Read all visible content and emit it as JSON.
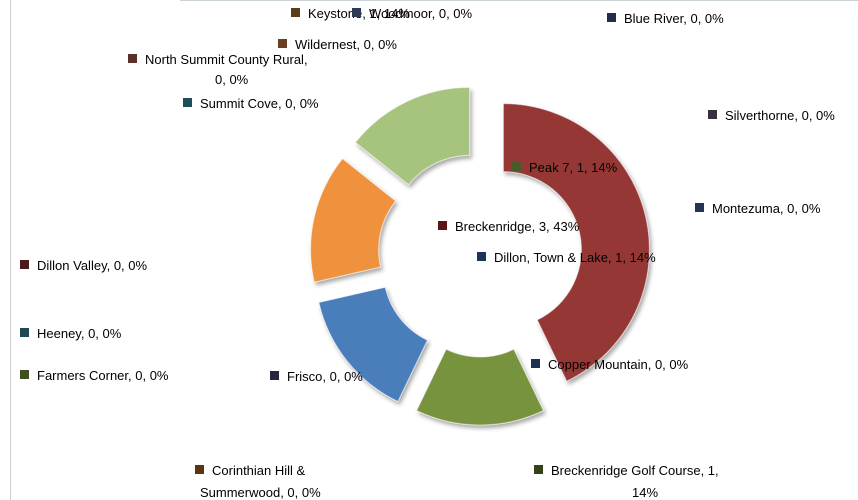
{
  "chart_data": {
    "type": "pie",
    "variant": "exploded-doughnut",
    "title": "",
    "legend": "none",
    "slices": [
      {
        "name": "Breckenridge",
        "count": 3,
        "percent": "43%",
        "color": "#953735"
      },
      {
        "name": "Breckenridge Golf Course",
        "count": 1,
        "percent": "14%",
        "color": "#77933c"
      },
      {
        "name": "Dillon, Town & Lake",
        "count": 1,
        "percent": "14%",
        "color": "#4a7ebb"
      },
      {
        "name": "Keystone",
        "count": 1,
        "percent": "14%",
        "color": "#f0913e"
      },
      {
        "name": "Peak 7",
        "count": 1,
        "percent": "14%",
        "color": "#a7c47e"
      }
    ],
    "labels": [
      {
        "key": "keystone",
        "text": "Keystone, 1, 14%",
        "color": "#5a3b1a"
      },
      {
        "key": "woodmoor",
        "text": "Woodmoor, 0, 0%",
        "color": "#2d3b55"
      },
      {
        "key": "blue-river",
        "text": "Blue River, 0, 0%",
        "color": "#1f2e4a"
      },
      {
        "key": "wildernest",
        "text": "Wildernest, 0, 0%",
        "color": "#6b3e26"
      },
      {
        "key": "north-summit-1",
        "text": "North Summit County Rural,",
        "color": "#5b2f2a"
      },
      {
        "key": "north-summit-2",
        "text": "0, 0%",
        "color": null
      },
      {
        "key": "summit-cove",
        "text": "Summit Cove, 0, 0%",
        "color": "#1d4f5a"
      },
      {
        "key": "silverthorne",
        "text": "Silverthorne, 0, 0%",
        "color": "#3a2f3f"
      },
      {
        "key": "peak-7",
        "text": "Peak 7, 1, 14%",
        "color": "#4b5a2a"
      },
      {
        "key": "montezuma",
        "text": "Montezuma, 0, 0%",
        "color": "#243452"
      },
      {
        "key": "breckenridge",
        "text": "Breckenridge, 3, 43%",
        "color": "#5a1616"
      },
      {
        "key": "dillon",
        "text": "Dillon, Town & Lake, 1, 14%",
        "color": "#1c3457"
      },
      {
        "key": "dillon-valley",
        "text": "Dillon Valley, 0, 0%",
        "color": "#4a1a1a"
      },
      {
        "key": "heeney",
        "text": "Heeney, 0, 0%",
        "color": "#1f4a55"
      },
      {
        "key": "farmers-corner",
        "text": "Farmers Corner, 0, 0%",
        "color": "#3f4f1f"
      },
      {
        "key": "frisco",
        "text": "Frisco, 0, 0%",
        "color": "#2a2440"
      },
      {
        "key": "copper-mountain",
        "text": "Copper Mountain, 0, 0%",
        "color": "#1c3052"
      },
      {
        "key": "corinthian-1",
        "text": "Corinthian Hill &",
        "color": "#5a3510"
      },
      {
        "key": "corinthian-2",
        "text": "Summerwood, 0, 0%",
        "color": null
      },
      {
        "key": "breck-golf-1",
        "text": "Breckenridge Golf Course, 1,",
        "color": "#34421a"
      },
      {
        "key": "breck-golf-2",
        "text": "14%",
        "color": null
      }
    ]
  }
}
